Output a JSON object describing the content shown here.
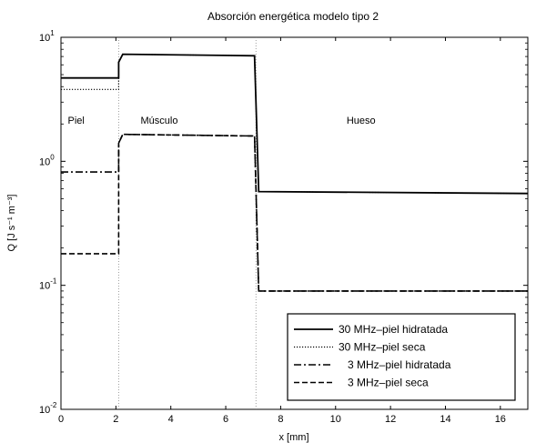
{
  "chart_data": {
    "type": "line",
    "title": "Absorción energética modelo tipo 2",
    "xlabel": "x [mm]",
    "ylabel": "Q [J s⁻¹ m⁻³]",
    "xlim": [
      0,
      17
    ],
    "ylim": [
      0.01,
      10
    ],
    "yscale": "log",
    "x_ticks": [
      0,
      2,
      4,
      6,
      8,
      10,
      12,
      14,
      16
    ],
    "y_ticks": [
      {
        "value": 0.01,
        "base": "10",
        "exp": "-2"
      },
      {
        "value": 0.1,
        "base": "10",
        "exp": "-1"
      },
      {
        "value": 1,
        "base": "10",
        "exp": "0"
      },
      {
        "value": 10,
        "base": "10",
        "exp": "1"
      }
    ],
    "grid": false,
    "legend_position": "bottom-right",
    "boundaries": [
      2.1,
      7.1
    ],
    "regions": [
      {
        "label": "Piel",
        "x": 0.25
      },
      {
        "label": "Músculo",
        "x": 2.9
      },
      {
        "label": "Hueso",
        "x": 10.4
      }
    ],
    "series": [
      {
        "name": "30 MHz–piel hidratada",
        "style": "solid",
        "width": 1.8,
        "x": [
          0,
          2.1,
          2.1,
          2.25,
          7.05,
          7.2,
          17
        ],
        "y": [
          4.7,
          4.7,
          6.3,
          7.3,
          7.1,
          0.57,
          0.55
        ]
      },
      {
        "name": "30 MHz–piel seca",
        "style": "dotted",
        "width": 1.2,
        "x": [
          0,
          2.1,
          2.1,
          2.25,
          7.05,
          7.2,
          17
        ],
        "y": [
          3.8,
          3.8,
          6.3,
          7.3,
          7.1,
          0.57,
          0.55
        ]
      },
      {
        "name": "3 MHz–piel hidratada",
        "style": "dashdot",
        "width": 1.6,
        "x": [
          0,
          2.1,
          2.1,
          2.25,
          7.05,
          7.2,
          17
        ],
        "y": [
          0.82,
          0.82,
          1.4,
          1.65,
          1.6,
          0.09,
          0.09
        ]
      },
      {
        "name": "3 MHz–piel seca",
        "style": "dashed",
        "width": 1.6,
        "x": [
          0,
          2.1,
          2.1,
          2.25,
          7.05,
          7.2,
          17
        ],
        "y": [
          0.18,
          0.18,
          1.4,
          1.65,
          1.6,
          0.09,
          0.09
        ]
      }
    ]
  }
}
